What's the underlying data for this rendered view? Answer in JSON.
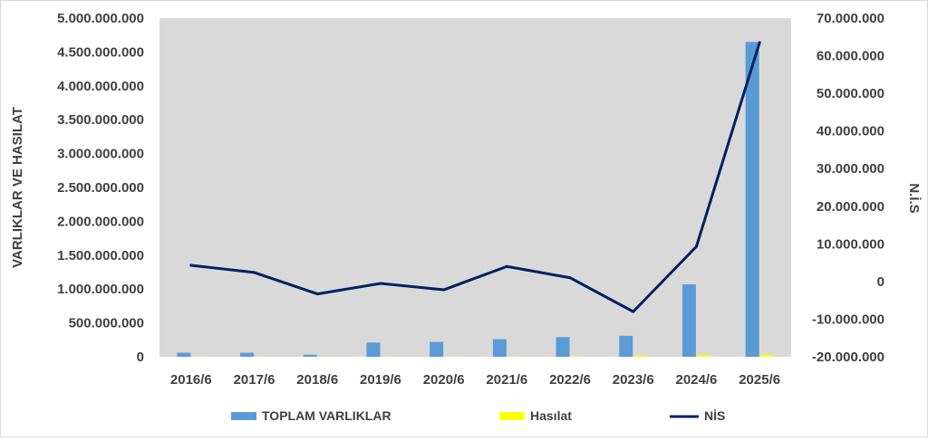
{
  "chart_data": {
    "type": "bar+line",
    "categories": [
      "2016/6",
      "2017/6",
      "2018/6",
      "2019/6",
      "2020/6",
      "2021/6",
      "2022/6",
      "2023/6",
      "2024/6",
      "2025/6"
    ],
    "series": [
      {
        "name": "TOPLAM VARLIKLAR",
        "type": "bar",
        "axis": "left",
        "color": "#5b9bd5",
        "values": [
          60000000,
          60000000,
          30000000,
          210000000,
          220000000,
          260000000,
          290000000,
          310000000,
          1070000000,
          4650000000
        ]
      },
      {
        "name": "Hasılat",
        "type": "bar",
        "axis": "left",
        "color": "#ffff00",
        "values": [
          3000000,
          3000000,
          2000000,
          4000000,
          5000000,
          5000000,
          7000000,
          20000000,
          30000000,
          30000000
        ]
      },
      {
        "name": "NİS",
        "type": "line",
        "axis": "right",
        "color": "#002060",
        "values": [
          4300000,
          2400000,
          -3300000,
          -500000,
          -2200000,
          4000000,
          1000000,
          -8000000,
          9300000,
          63500000
        ]
      }
    ],
    "ylabel": "VARLIKLAR VE HASILAT",
    "y2label": "N.İ.S",
    "ylim": [
      0,
      5000000000
    ],
    "y2lim": [
      -20000000,
      70000000
    ],
    "yticks": [
      "5.000.000.000",
      "4.500.000.000",
      "4.000.000.000",
      "3.500.000.000",
      "3.000.000.000",
      "2.500.000.000",
      "2.000.000.000",
      "1.500.000.000",
      "1.000.000.000",
      "500.000.000",
      "0"
    ],
    "y2ticks": [
      "70.000.000",
      "60.000.000",
      "50.000.000",
      "40.000.000",
      "30.000.000",
      "20.000.000",
      "10.000.000",
      "0",
      "-10.000.000",
      "-20.000.000"
    ],
    "grid": false,
    "legend": "bottom",
    "plot_background": "#d9d9d9"
  }
}
